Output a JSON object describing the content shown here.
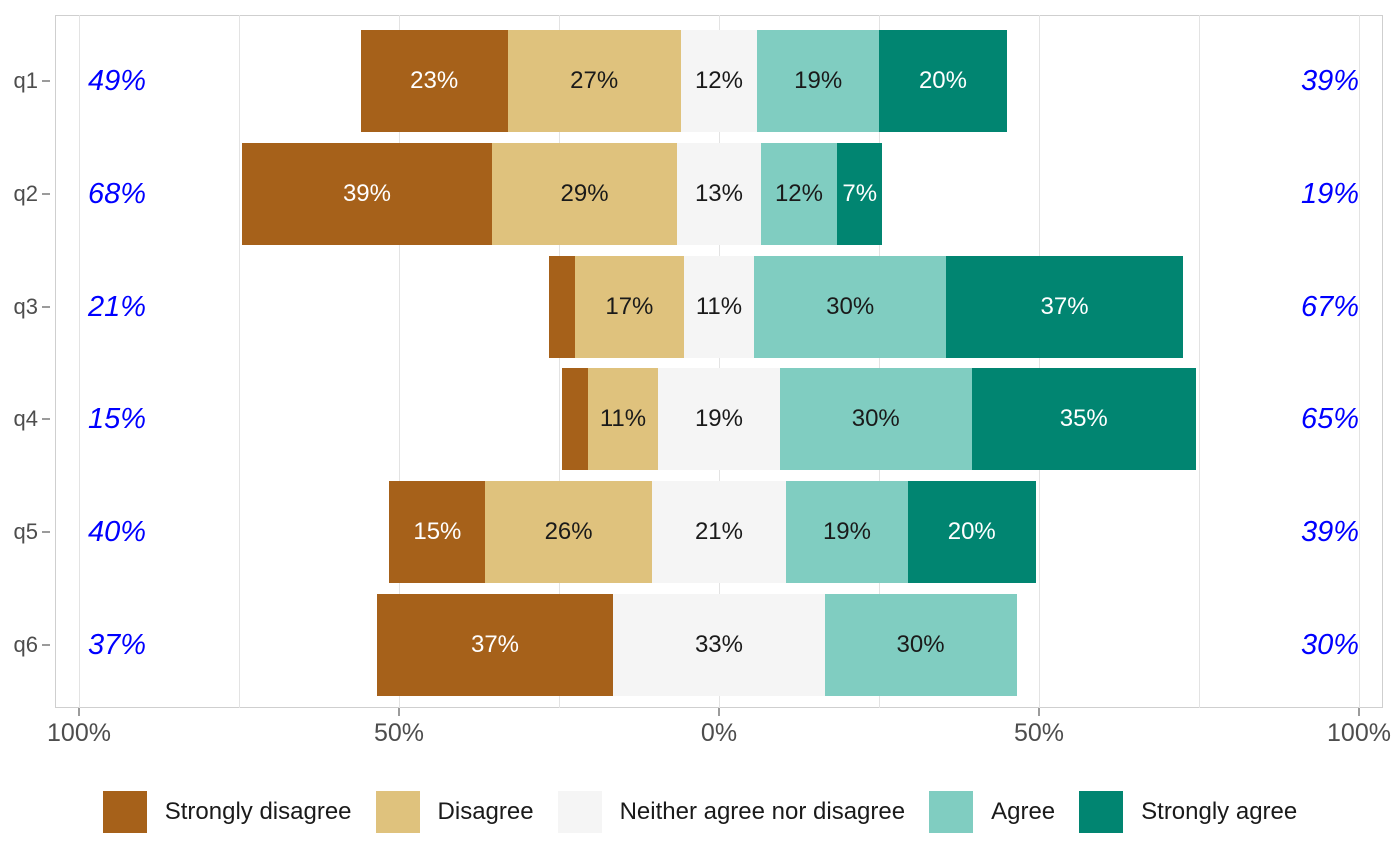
{
  "chart_data": {
    "type": "bar",
    "subtype": "diverging_stacked_likert",
    "orientation": "horizontal",
    "title": "",
    "legend_position": "bottom",
    "grid": "on",
    "levels": [
      {
        "name": "Strongly disagree",
        "color": "#A6611A",
        "text_color": "#ffffff"
      },
      {
        "name": "Disagree",
        "color": "#DFC27D",
        "text_color": "#1a1a1a"
      },
      {
        "name": "Neither agree nor disagree",
        "color": "#F5F5F5",
        "text_color": "#1a1a1a"
      },
      {
        "name": "Agree",
        "color": "#80CDC1",
        "text_color": "#1a1a1a"
      },
      {
        "name": "Strongly agree",
        "color": "#018571",
        "text_color": "#ffffff"
      }
    ],
    "categories": [
      "q1",
      "q2",
      "q3",
      "q4",
      "q5",
      "q6"
    ],
    "rows": [
      {
        "category": "q1",
        "values": [
          23,
          27,
          12,
          19,
          20
        ],
        "labels": [
          "23%",
          "27%",
          "12%",
          "19%",
          "20%"
        ],
        "left_total": "49%",
        "right_total": "39%"
      },
      {
        "category": "q2",
        "values": [
          39,
          29,
          13,
          12,
          7
        ],
        "labels": [
          "39%",
          "29%",
          "13%",
          "12%",
          "7%"
        ],
        "left_total": "68%",
        "right_total": "19%"
      },
      {
        "category": "q3",
        "values": [
          4,
          17,
          11,
          30,
          37
        ],
        "labels": [
          "",
          "17%",
          "11%",
          "30%",
          "37%"
        ],
        "left_total": "21%",
        "right_total": "67%"
      },
      {
        "category": "q4",
        "values": [
          4,
          11,
          19,
          30,
          35
        ],
        "labels": [
          "",
          "11%",
          "19%",
          "30%",
          "35%"
        ],
        "left_total": "15%",
        "right_total": "65%"
      },
      {
        "category": "q5",
        "values": [
          15,
          26,
          21,
          19,
          20
        ],
        "labels": [
          "15%",
          "26%",
          "21%",
          "19%",
          "20%"
        ],
        "left_total": "40%",
        "right_total": "39%"
      },
      {
        "category": "q6",
        "values": [
          37,
          0,
          33,
          30,
          0
        ],
        "labels": [
          "37%",
          "",
          "33%",
          "30%",
          ""
        ],
        "left_total": "37%",
        "right_total": "30%"
      }
    ],
    "x_axis": {
      "tick_labels": [
        "100%",
        "50%",
        "0%",
        "50%",
        "100%"
      ],
      "tick_values": [
        -100,
        -50,
        0,
        50,
        100
      ],
      "gridline_values": [
        -100,
        -75,
        -50,
        -25,
        0,
        25,
        50,
        75,
        100
      ],
      "unit": "percent"
    },
    "neither_centered_on_zero": true,
    "totals_color": "#0000FF",
    "axis_text_color": "#4d4d4d",
    "panel_border_color": "#cfcfcf",
    "gridline_color": "#e3e3e3"
  }
}
